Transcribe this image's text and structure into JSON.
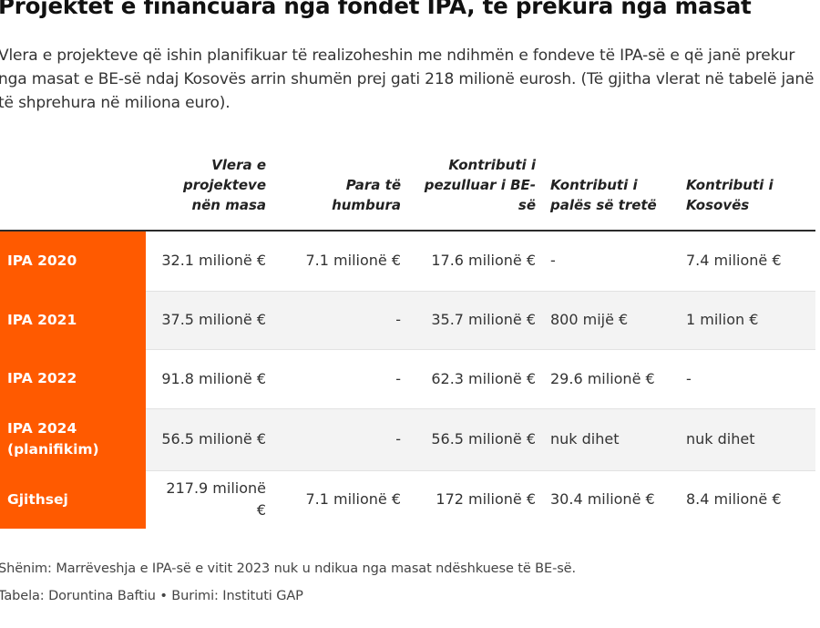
{
  "title": "Projektet e financuara nga fondet IPA, të prekura nga masat",
  "intro": "Vlera e projekteve që ishin planifikuar të realizoheshin me ndihmën e fondeve të IPA-së e që janë prekur nga masat e BE-së ndaj Kosovës arrin shumën prej gati 218 milionë eurosh. (Të gjitha vlerat në tabelë janë të shprehura në miliona euro).",
  "table": {
    "headers": [
      "",
      "Vlera e projekteve nën masa",
      "Para të humbura",
      "Kontributi i pezulluar i BE-së",
      "Kontributi i palës së tretë",
      "Kontributi i Kosovës"
    ],
    "rows": [
      {
        "label": "IPA 2020",
        "cells": [
          "32.1 milionë €",
          "7.1 milionë €",
          "17.6 milionë €",
          "-",
          "7.4 milionë €"
        ]
      },
      {
        "label": "IPA 2021",
        "cells": [
          "37.5 milionë €",
          "-",
          "35.7 milionë €",
          "800 mijë €",
          "1 milion €"
        ]
      },
      {
        "label": "IPA 2022",
        "cells": [
          "91.8 milionë €",
          "-",
          "62.3 milionë €",
          "29.6 milionë €",
          "-"
        ]
      },
      {
        "label": "IPA 2024 (planifikim)",
        "cells": [
          "56.5 milionë €",
          "-",
          "56.5 milionë €",
          "nuk dihet",
          "nuk dihet"
        ]
      },
      {
        "label": "Gjithsej",
        "cells": [
          "217.9 milionë €",
          "7.1 milionë €",
          "172 milionë €",
          "30.4 milionë €",
          "8.4 milionë €"
        ]
      }
    ]
  },
  "note": "Shënim: Marrëveshja e IPA-së e vitit 2023 nuk u ndikua nga masat ndëshkuese të BE-së.",
  "credit": "Tabela: Doruntina Baftiu • Burimi: Instituti GAP",
  "colors": {
    "accent": "#ff5a00",
    "row_alt": "#f3f3f3",
    "text": "#333333"
  }
}
